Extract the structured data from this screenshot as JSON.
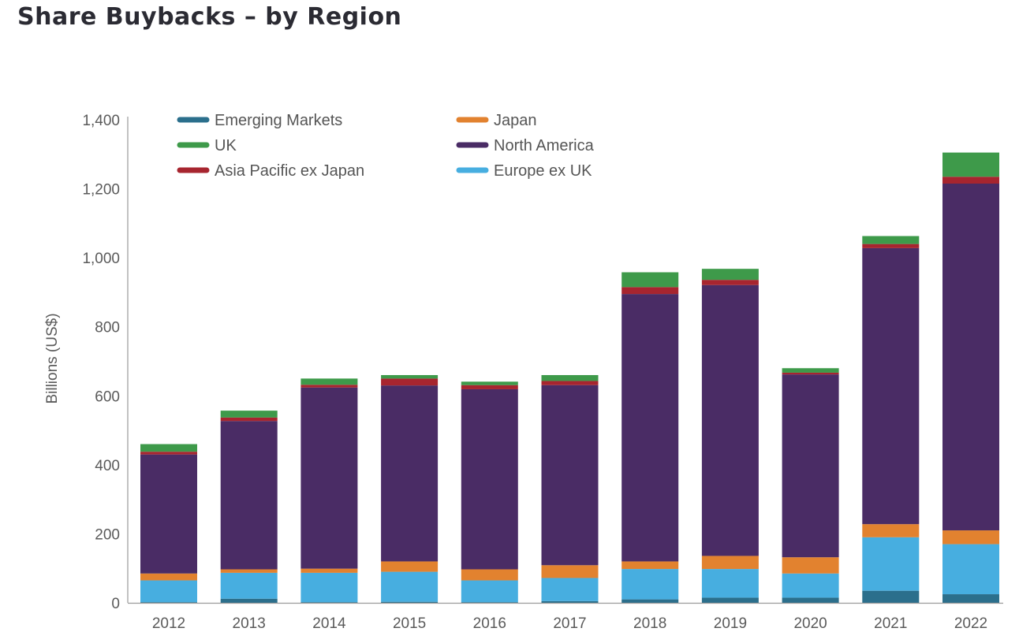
{
  "page": {
    "title": "Share Buybacks – by Region"
  },
  "chart_data": {
    "type": "bar",
    "stacked": true,
    "title": "",
    "xlabel": "",
    "ylabel": "Billions (US$)",
    "ylim": [
      0,
      1400
    ],
    "yticks": [
      0,
      200,
      400,
      600,
      800,
      1000,
      1200,
      1400
    ],
    "ytick_labels": [
      "0",
      "200",
      "400",
      "600",
      "800",
      "1,000",
      "1,200",
      "1,400"
    ],
    "grid": false,
    "legend_position": "top-left",
    "legend_columns": 2,
    "categories": [
      "2012",
      "2013",
      "2014",
      "2015",
      "2016",
      "2017",
      "2018",
      "2019",
      "2020",
      "2021",
      "2022"
    ],
    "series": [
      {
        "name": "Emerging Markets",
        "color": "#2b6f8c",
        "values": [
          2,
          12,
          2,
          3,
          2,
          5,
          10,
          15,
          15,
          35,
          25
        ]
      },
      {
        "name": "Europe ex UK",
        "color": "#47aee0",
        "values": [
          63,
          75,
          85,
          87,
          63,
          67,
          88,
          83,
          70,
          155,
          145
        ]
      },
      {
        "name": "Japan",
        "color": "#e2822f",
        "values": [
          20,
          10,
          12,
          30,
          32,
          37,
          22,
          38,
          47,
          38,
          40
        ]
      },
      {
        "name": "North America",
        "color": "#4a2c65",
        "values": [
          345,
          430,
          525,
          510,
          522,
          522,
          775,
          785,
          530,
          800,
          1005
        ]
      },
      {
        "name": "Asia Pacific ex Japan",
        "color": "#a7252f",
        "values": [
          8,
          10,
          8,
          20,
          12,
          12,
          20,
          15,
          5,
          12,
          20
        ]
      },
      {
        "name": "UK",
        "color": "#3e9a4a",
        "values": [
          22,
          20,
          18,
          10,
          10,
          17,
          43,
          32,
          13,
          23,
          70
        ]
      }
    ],
    "legend_order": [
      "Emerging Markets",
      "Japan",
      "UK",
      "North America",
      "Asia Pacific ex Japan",
      "Europe ex UK"
    ]
  }
}
